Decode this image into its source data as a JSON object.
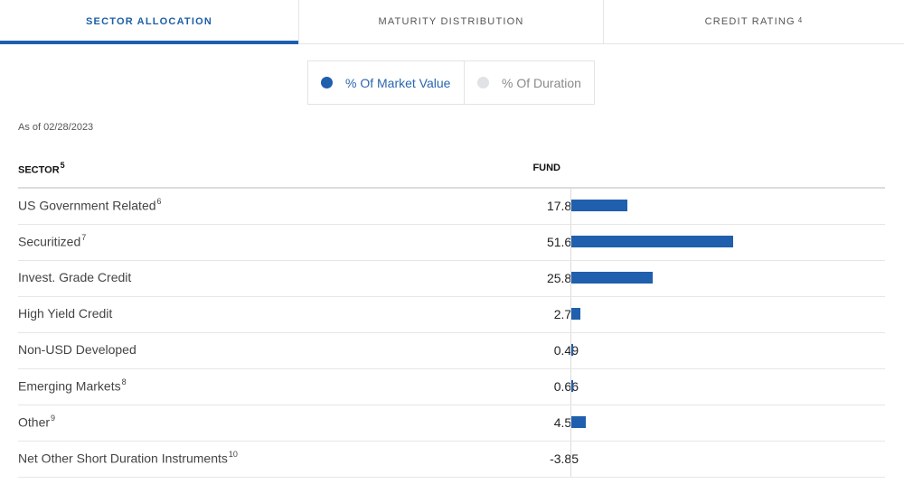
{
  "tabs": [
    {
      "label": "SECTOR ALLOCATION",
      "sup": ""
    },
    {
      "label": "MATURITY DISTRIBUTION",
      "sup": ""
    },
    {
      "label": "CREDIT RATING",
      "sup": "4"
    }
  ],
  "toggle": {
    "options": [
      {
        "label": "% Of Market Value",
        "selected": true
      },
      {
        "label": "% Of Duration",
        "selected": false
      }
    ]
  },
  "as_of": "As of 02/28/2023",
  "table": {
    "header_sector": "SECTOR",
    "header_sector_sup": "5",
    "header_fund": "FUND",
    "rows": [
      {
        "name": "US Government Related",
        "sup": "6",
        "value": "17.87"
      },
      {
        "name": "Securitized",
        "sup": "7",
        "value": "51.68"
      },
      {
        "name": "Invest. Grade Credit",
        "sup": "",
        "value": "25.86"
      },
      {
        "name": "High Yield Credit",
        "sup": "",
        "value": "2.78"
      },
      {
        "name": "Non-USD Developed",
        "sup": "",
        "value": "0.49"
      },
      {
        "name": "Emerging Markets",
        "sup": "8",
        "value": "0.66"
      },
      {
        "name": "Other",
        "sup": "9",
        "value": "4.52"
      },
      {
        "name": "Net Other Short Duration Instruments",
        "sup": "10",
        "value": "-3.85"
      }
    ]
  },
  "colors": {
    "accent": "#1f5fae",
    "inactive_dot": "#e0e2e6"
  }
}
